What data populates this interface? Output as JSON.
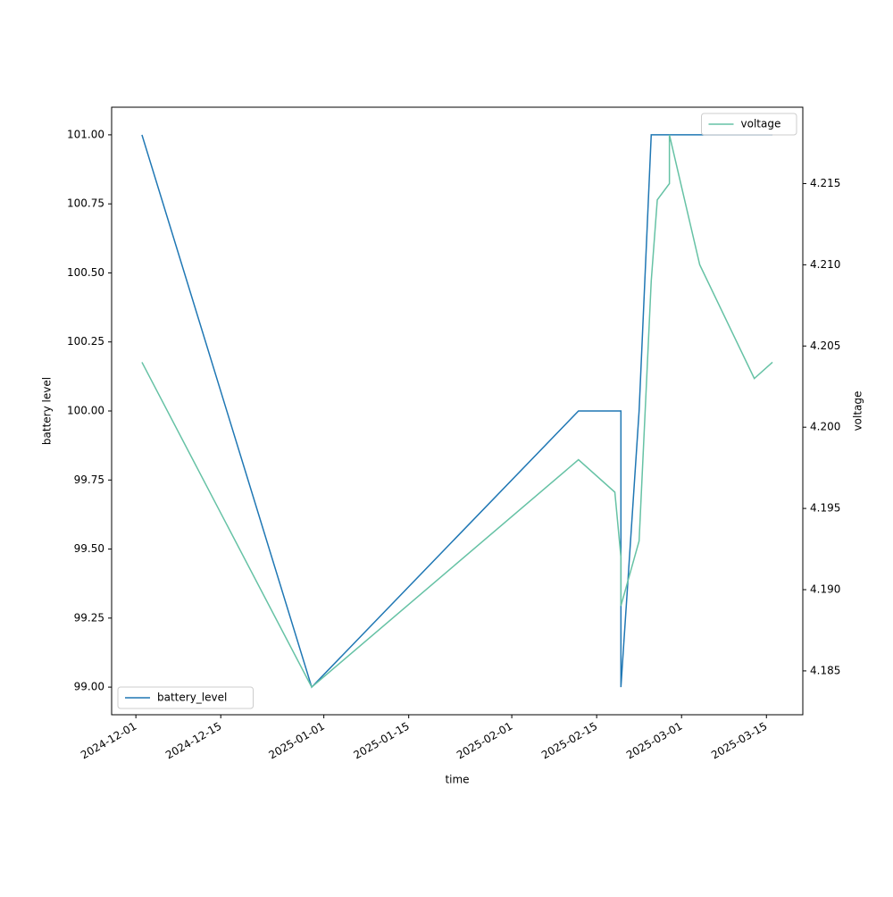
{
  "chart_data": {
    "type": "line",
    "x_label": "time",
    "y_label": "battery level",
    "y2_label": "voltage",
    "xlim": [
      "2024-11-27",
      "2025-03-21"
    ],
    "xticks": [
      "2024-12-01",
      "2024-12-15",
      "2025-01-01",
      "2025-01-15",
      "2025-02-01",
      "2025-02-15",
      "2025-03-01",
      "2025-03-15"
    ],
    "ylim": [
      98.9,
      101.1
    ],
    "yticks": [
      {
        "value": 99,
        "label": "99.00"
      },
      {
        "value": 99.25,
        "label": "99.25"
      },
      {
        "value": 99.5,
        "label": "99.50"
      },
      {
        "value": 99.75,
        "label": "99.75"
      },
      {
        "value": 100,
        "label": "100.00"
      },
      {
        "value": 100.25,
        "label": "100.25"
      },
      {
        "value": 100.5,
        "label": "100.50"
      },
      {
        "value": 100.75,
        "label": "100.75"
      },
      {
        "value": 101,
        "label": "101.00"
      }
    ],
    "y2lim": [
      4.1823,
      4.2197
    ],
    "y2ticks": [
      4.185,
      {
        "value": 4.19,
        "label": "4.190"
      },
      4.195,
      {
        "value": 4.2,
        "label": "4.200"
      },
      4.205,
      {
        "value": 4.21,
        "label": "4.210"
      },
      4.215
    ],
    "series": [
      {
        "name": "battery_level",
        "color": "#1f77b4",
        "legend_loc": "lower left",
        "x": [
          "2024-12-02",
          "2024-12-30",
          "2025-02-12",
          "2025-02-19",
          "2025-02-19",
          "2025-02-22",
          "2025-02-24",
          "2025-03-16"
        ],
        "values": [
          101,
          99,
          100,
          100,
          99,
          100,
          101,
          101
        ]
      },
      {
        "name": "voltage",
        "color": "#66c2a5",
        "axis": "y2",
        "legend_loc": "upper right",
        "x": [
          "2024-12-02",
          "2024-12-30",
          "2025-02-12",
          "2025-02-18",
          "2025-02-19",
          "2025-02-19",
          "2025-02-22",
          "2025-02-24",
          "2025-02-25",
          "2025-02-27",
          "2025-02-27",
          "2025-03-04",
          "2025-03-13",
          "2025-03-16"
        ],
        "values": [
          4.204,
          4.184,
          4.198,
          4.196,
          4.192,
          4.189,
          4.193,
          4.209,
          4.214,
          4.215,
          4.218,
          4.21,
          4.203,
          4.204
        ]
      }
    ]
  }
}
